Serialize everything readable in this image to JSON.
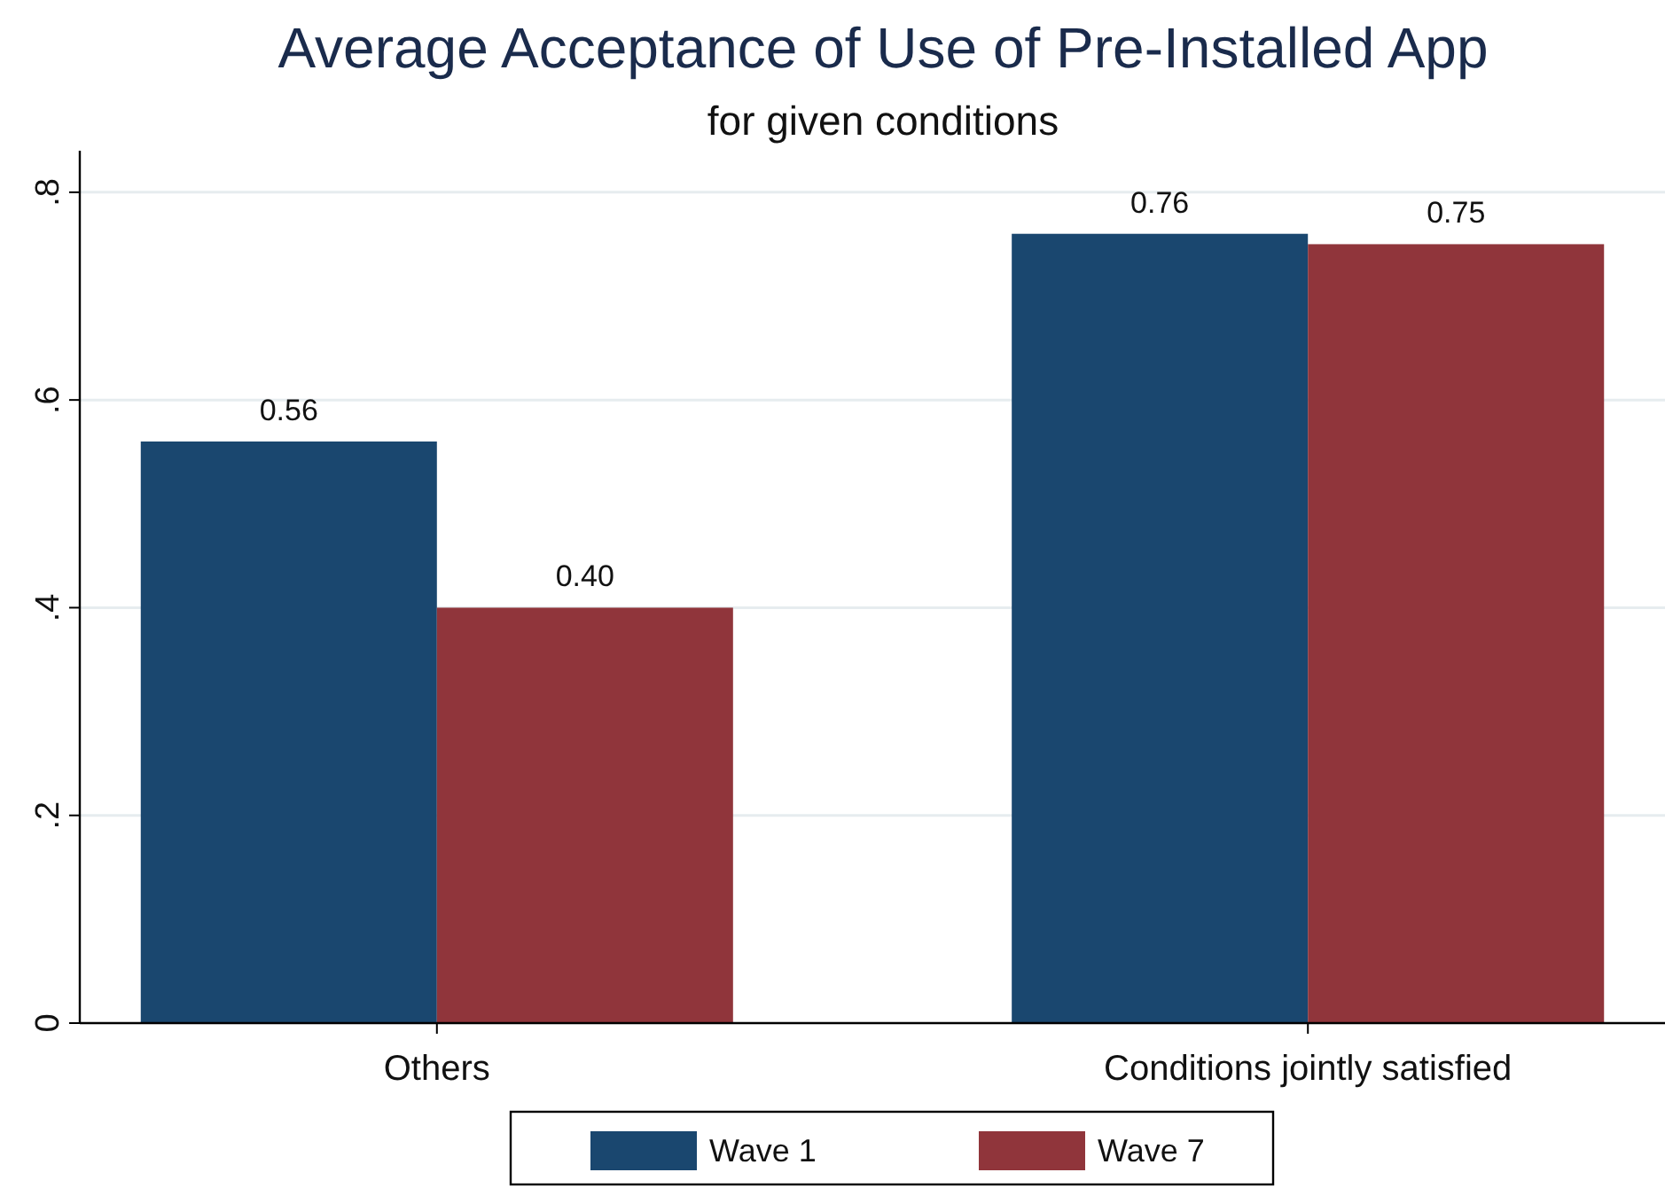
{
  "chart_data": {
    "type": "bar",
    "title": "Average Acceptance of Use of Pre-Installed App",
    "subtitle": "for given conditions",
    "categories": [
      "Others",
      "Conditions jointly satisfied"
    ],
    "series": [
      {
        "name": "Wave 1",
        "color": "#1a476f",
        "values": [
          0.56,
          0.76
        ],
        "value_labels": [
          "0.56",
          "0.76"
        ]
      },
      {
        "name": "Wave 7",
        "color": "#90353b",
        "values": [
          0.4,
          0.75
        ],
        "value_labels": [
          "0.40",
          "0.75"
        ]
      }
    ],
    "ylim": [
      0,
      0.84
    ],
    "yticks": [
      0,
      {
        "value": 0.2,
        "label": ".2"
      },
      {
        "value": 0.4,
        "label": ".4"
      },
      {
        "value": 0.6,
        "label": ".6"
      },
      {
        "value": 0.8,
        "label": ".8"
      }
    ],
    "grid": "y",
    "legend": "bottom"
  }
}
